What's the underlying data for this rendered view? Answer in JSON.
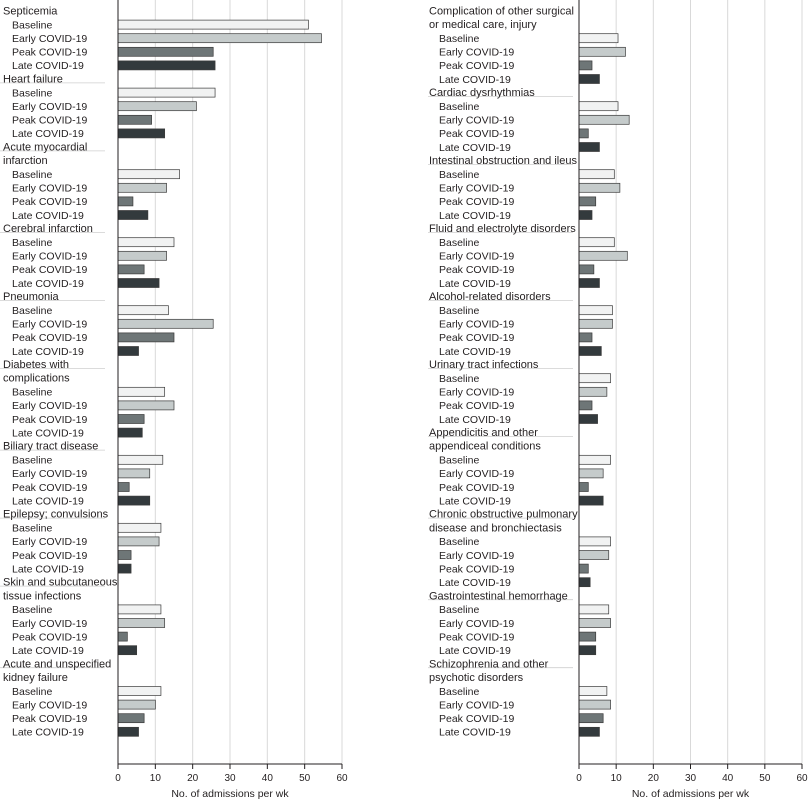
{
  "chart_data": [
    {
      "type": "bar",
      "orientation": "horizontal",
      "panel": "left",
      "xlabel": "No. of admissions per wk",
      "xlim": [
        0,
        60
      ],
      "xticks": [
        0,
        10,
        20,
        30,
        40,
        50,
        60
      ],
      "grid": true,
      "periods": [
        "Baseline",
        "Early COVID-19",
        "Peak COVID-19",
        "Late COVID-19"
      ],
      "period_colors": [
        "#f1f2f2",
        "#c5cbcb",
        "#6e7677",
        "#333a3d"
      ],
      "groups": [
        {
          "title": [
            "Septicemia"
          ],
          "values": [
            51,
            54.5,
            25.5,
            26
          ]
        },
        {
          "title": [
            "Heart failure"
          ],
          "values": [
            26,
            21,
            9,
            12.5
          ]
        },
        {
          "title": [
            "Acute myocardial",
            "infarction"
          ],
          "values": [
            16.5,
            13,
            4,
            8
          ]
        },
        {
          "title": [
            "Cerebral infarction"
          ],
          "values": [
            15,
            13,
            7,
            11
          ]
        },
        {
          "title": [
            "Pneumonia"
          ],
          "values": [
            13.5,
            25.5,
            15,
            5.5
          ]
        },
        {
          "title": [
            "Diabetes with",
            "complications"
          ],
          "values": [
            12.5,
            15,
            7,
            6.5
          ]
        },
        {
          "title": [
            "Biliary tract disease"
          ],
          "values": [
            12,
            8.5,
            3,
            8.5
          ]
        },
        {
          "title": [
            "Epilepsy; convulsions"
          ],
          "values": [
            11.5,
            11,
            3.5,
            3.5
          ]
        },
        {
          "title": [
            "Skin and subcutaneous",
            "tissue infections"
          ],
          "values": [
            11.5,
            12.5,
            2.5,
            5
          ]
        },
        {
          "title": [
            "Acute and unspecified",
            "kidney failure"
          ],
          "values": [
            11.5,
            10,
            7,
            5.5
          ]
        }
      ]
    },
    {
      "type": "bar",
      "orientation": "horizontal",
      "panel": "right",
      "xlabel": "No. of admissions per wk",
      "xlim": [
        0,
        60
      ],
      "xticks": [
        0,
        10,
        20,
        30,
        40,
        50,
        60
      ],
      "grid": true,
      "periods": [
        "Baseline",
        "Early COVID-19",
        "Peak COVID-19",
        "Late COVID-19"
      ],
      "period_colors": [
        "#f1f2f2",
        "#c5cbcb",
        "#6e7677",
        "#333a3d"
      ],
      "groups": [
        {
          "title": [
            "Complication of other surgical",
            "or medical care, injury"
          ],
          "values": [
            10.5,
            12.5,
            3.5,
            5.5
          ]
        },
        {
          "title": [
            "Cardiac dysrhythmias"
          ],
          "values": [
            10.5,
            13.5,
            2.5,
            5.5
          ]
        },
        {
          "title": [
            "Intestinal obstruction and ileus"
          ],
          "values": [
            9.5,
            11,
            4.5,
            3.5
          ]
        },
        {
          "title": [
            "Fluid and electrolyte disorders"
          ],
          "values": [
            9.5,
            13,
            4,
            5.5
          ]
        },
        {
          "title": [
            "Alcohol-related disorders"
          ],
          "values": [
            9,
            9,
            3.5,
            6
          ]
        },
        {
          "title": [
            "Urinary tract infections"
          ],
          "values": [
            8.5,
            7.5,
            3.5,
            5
          ]
        },
        {
          "title": [
            "Appendicitis and other",
            "appendiceal conditions"
          ],
          "values": [
            8.5,
            6.5,
            2.5,
            6.5
          ]
        },
        {
          "title": [
            "Chronic obstructive pulmonary",
            "disease and bronchiectasis"
          ],
          "values": [
            8.5,
            8,
            2.5,
            3
          ]
        },
        {
          "title": [
            "Gastrointestinal hemorrhage"
          ],
          "values": [
            8,
            8.5,
            4.5,
            4.5
          ]
        },
        {
          "title": [
            "Schizophrenia and other",
            "psychotic disorders"
          ],
          "values": [
            7.5,
            8.5,
            6.5,
            5.5
          ]
        }
      ]
    }
  ]
}
